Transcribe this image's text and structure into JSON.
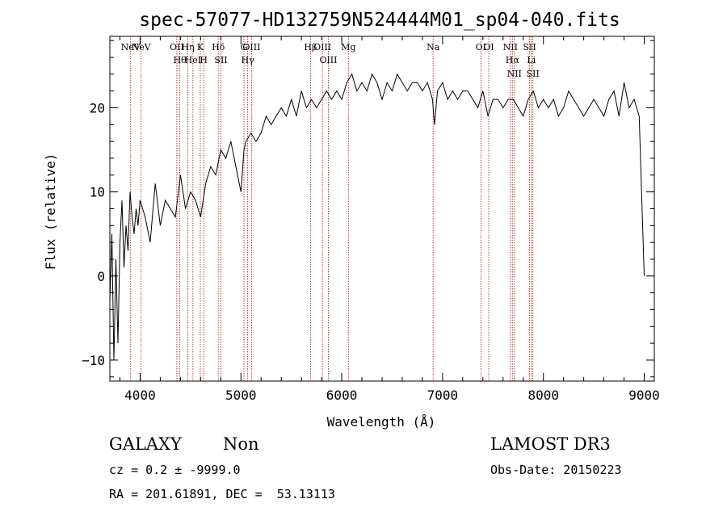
{
  "chart_data": {
    "type": "line",
    "title": "spec-57077-HD132759N524444M01_sp04-040.fits",
    "xlabel": "Wavelength (Å)",
    "ylabel": "Flux (relative)",
    "xlim": [
      3700,
      9100
    ],
    "ylim": [
      -12.5,
      28.5
    ],
    "x_ticks": [
      4000,
      5000,
      6000,
      7000,
      8000,
      9000
    ],
    "y_ticks": [
      -10,
      0,
      10,
      20
    ],
    "grid": false,
    "series": [
      {
        "name": "flux",
        "x": [
          3700,
          3720,
          3740,
          3760,
          3780,
          3800,
          3820,
          3840,
          3860,
          3880,
          3900,
          3920,
          3940,
          3960,
          3980,
          4000,
          4050,
          4100,
          4150,
          4200,
          4250,
          4300,
          4350,
          4400,
          4450,
          4500,
          4550,
          4600,
          4650,
          4700,
          4750,
          4800,
          4850,
          4900,
          4950,
          5000,
          5030,
          5050,
          5100,
          5150,
          5200,
          5250,
          5300,
          5350,
          5400,
          5450,
          5500,
          5550,
          5600,
          5650,
          5700,
          5750,
          5800,
          5850,
          5900,
          5950,
          6000,
          6050,
          6100,
          6150,
          6200,
          6250,
          6300,
          6350,
          6400,
          6450,
          6500,
          6550,
          6600,
          6650,
          6700,
          6750,
          6800,
          6850,
          6900,
          6920,
          6950,
          7000,
          7050,
          7100,
          7150,
          7200,
          7250,
          7300,
          7350,
          7400,
          7450,
          7500,
          7550,
          7600,
          7650,
          7700,
          7750,
          7800,
          7850,
          7900,
          7950,
          8000,
          8050,
          8100,
          8150,
          8200,
          8250,
          8300,
          8350,
          8400,
          8450,
          8500,
          8550,
          8600,
          8650,
          8700,
          8750,
          8800,
          8850,
          8900,
          8950,
          9000
        ],
        "values": [
          -3,
          5,
          -10,
          2,
          -8,
          4,
          9,
          1,
          6,
          3,
          10,
          7,
          5,
          8,
          6,
          9,
          7,
          4,
          11,
          6,
          9,
          8,
          7,
          12,
          8,
          10,
          9,
          7,
          11,
          13,
          12,
          15,
          14,
          16,
          13,
          10,
          15,
          16,
          17,
          16,
          17,
          19,
          18,
          19,
          20,
          19,
          21,
          19,
          22,
          20,
          21,
          20,
          21,
          22,
          21,
          22,
          21,
          23,
          24,
          22,
          23,
          22,
          24,
          23,
          21,
          23,
          22,
          24,
          23,
          22,
          23,
          23,
          22,
          23,
          21,
          18,
          22,
          23,
          21,
          22,
          21,
          22,
          22,
          21,
          20,
          22,
          19,
          21,
          21,
          20,
          21,
          21,
          20,
          19,
          21,
          22,
          20,
          21,
          20,
          21,
          19,
          20,
          22,
          21,
          20,
          19,
          20,
          21,
          20,
          19,
          21,
          22,
          19,
          23,
          20,
          21,
          19,
          0
        ]
      }
    ],
    "spectral_lines": [
      {
        "name": "NeV",
        "wavelength": 3906
      },
      {
        "name": "NeV",
        "wavelength": 4010
      },
      {
        "name": "OII",
        "wavelength": 4364
      },
      {
        "name": "Hθ",
        "wavelength": 4394
      },
      {
        "name": "Hη",
        "wavelength": 4474
      },
      {
        "name": "HeI",
        "wavelength": 4524
      },
      {
        "name": "K",
        "wavelength": 4597
      },
      {
        "name": "H",
        "wavelength": 4631
      },
      {
        "name": "Hδ",
        "wavelength": 4775
      },
      {
        "name": "SII",
        "wavelength": 4802
      },
      {
        "name": "G",
        "wavelength": 5030
      },
      {
        "name": "Hγ",
        "wavelength": 5067
      },
      {
        "name": "OIII",
        "wavelength": 5105
      },
      {
        "name": "Hβ",
        "wavelength": 5690
      },
      {
        "name": "OIII",
        "wavelength": 5808
      },
      {
        "name": "OIII",
        "wavelength": 5867
      },
      {
        "name": "Mg",
        "wavelength": 6066
      },
      {
        "name": "Na",
        "wavelength": 6906
      },
      {
        "name": "OI",
        "wavelength": 7380
      },
      {
        "name": "OI",
        "wavelength": 7458
      },
      {
        "name": "NII",
        "wavelength": 7672
      },
      {
        "name": "Hα",
        "wavelength": 7692
      },
      {
        "name": "NII",
        "wavelength": 7712
      },
      {
        "name": "SII",
        "wavelength": 7863
      },
      {
        "name": "Li",
        "wavelength": 7880
      },
      {
        "name": "SII",
        "wavelength": 7896
      }
    ]
  },
  "info": {
    "class": "GALAXY",
    "subclass": "Non",
    "survey": "LAMOST DR3",
    "cz": "cz = 0.2 ± -9999.0",
    "obs_date": "Obs-Date: 20150223",
    "coords": "RA = 201.61891, DEC =  53.13113"
  },
  "colors": {
    "line_marker": "#aa1111",
    "spectrum": "#000000"
  }
}
